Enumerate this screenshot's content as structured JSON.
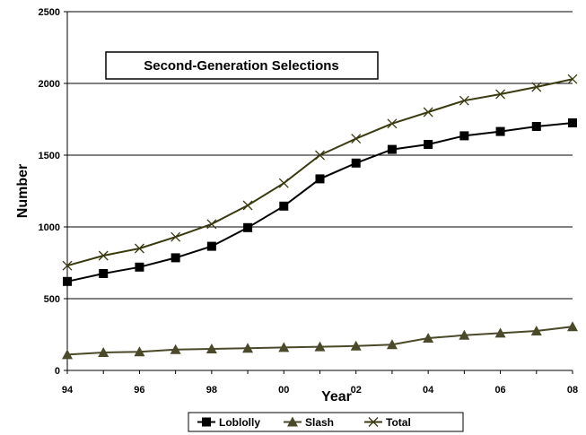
{
  "chart_data": {
    "type": "line",
    "title": "Second-Generation Selections",
    "xlabel": "Year",
    "ylabel": "Number",
    "x": [
      "94",
      "95",
      "96",
      "97",
      "98",
      "99",
      "00",
      "01",
      "02",
      "03",
      "04",
      "05",
      "06",
      "07",
      "08"
    ],
    "x_tick_labels": [
      "94",
      "96",
      "98",
      "00",
      "02",
      "04",
      "06",
      "08"
    ],
    "y_ticks": [
      "0",
      "500",
      "1000",
      "1500",
      "2000",
      "2500"
    ],
    "ylim": [
      0,
      2500
    ],
    "grid": true,
    "legend_position": "bottom",
    "series": [
      {
        "name": "Loblolly",
        "marker": "square",
        "color": "#000000",
        "values": [
          620,
          675,
          720,
          785,
          865,
          995,
          1145,
          1335,
          1445,
          1540,
          1575,
          1635,
          1665,
          1700,
          1725
        ]
      },
      {
        "name": "Slash",
        "marker": "triangle",
        "color": "#4a4a2a",
        "values": [
          110,
          125,
          130,
          145,
          150,
          155,
          160,
          165,
          170,
          180,
          225,
          245,
          260,
          275,
          305
        ]
      },
      {
        "name": "Total",
        "marker": "x",
        "color": "#3a3a10",
        "values": [
          730,
          800,
          850,
          930,
          1020,
          1150,
          1305,
          1500,
          1615,
          1720,
          1800,
          1880,
          1925,
          1975,
          2030
        ]
      }
    ]
  }
}
